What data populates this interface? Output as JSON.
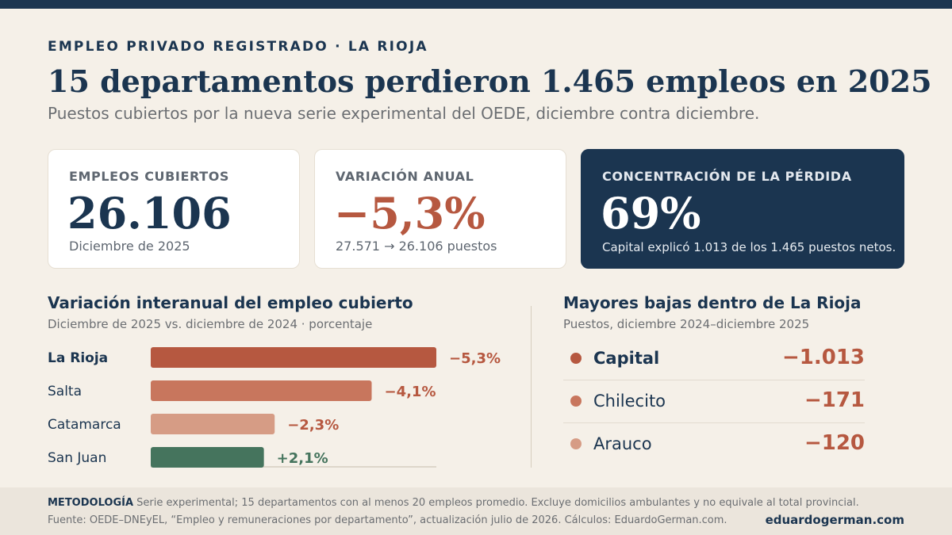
{
  "header": {
    "kicker": "EMPLEO PRIVADO REGISTRADO · LA RIOJA",
    "title": "15 departamentos perdieron 1.465 empleos en 2025",
    "subtitle": "Puestos cubiertos por la nueva serie experimental del OEDE, diciembre contra diciembre."
  },
  "cards": [
    {
      "label": "EMPLEOS CUBIERTOS",
      "value": "26.106",
      "note": "Diciembre de 2025"
    },
    {
      "label": "VARIACIÓN ANUAL",
      "value": "−5,3%",
      "note": "27.571 → 26.106 puestos"
    },
    {
      "label": "CONCENTRACIÓN DE LA PÉRDIDA",
      "value": "69%",
      "note": "Capital explicó 1.013 de los 1.465 puestos netos."
    }
  ],
  "chart_data": [
    {
      "type": "bar",
      "orientation": "horizontal",
      "title": "Variación interanual del empleo cubierto",
      "subtitle": "Diciembre de 2025 vs. diciembre de 2024 · porcentaje",
      "categories": [
        "La Rioja",
        "Salta",
        "Catamarca",
        "San Juan"
      ],
      "values": [
        -5.3,
        -4.1,
        -2.3,
        2.1
      ],
      "labels": [
        "−5,3%",
        "−4,1%",
        "−2,3%",
        "+2,1%"
      ],
      "highlight": "La Rioja",
      "colors": [
        "#b65840",
        "#c8765d",
        "#d69c85",
        "#45745d"
      ],
      "grid": false,
      "legend": "none"
    },
    {
      "type": "table",
      "title": "Mayores bajas dentro de La Rioja",
      "subtitle": "Puestos, diciembre 2024–diciembre 2025",
      "rows": [
        {
          "name": "Capital",
          "value": -1013,
          "label": "−1.013",
          "color": "#b65840"
        },
        {
          "name": "Chilecito",
          "value": -171,
          "label": "−171",
          "color": "#c8765d"
        },
        {
          "name": "Arauco",
          "value": -120,
          "label": "−120",
          "color": "#d69c85"
        }
      ]
    }
  ],
  "footer": {
    "methodology_label": "METODOLOGÍA",
    "methodology_text": "Serie experimental; 15 departamentos con al menos 20 empleos promedio. Excluye domicilios ambulantes y no equivale al total provincial.",
    "source": "Fuente: OEDE–DNEyEL, “Empleo y remuneraciones por departamento”, actualización julio de 2026. Cálculos: EduardoGerman.com.",
    "brand": "eduardogerman.com"
  },
  "colors": {
    "navy": "#1b3550",
    "accent_negative": "#b65840",
    "accent_positive": "#45745d",
    "background": "#f5f0e8"
  }
}
